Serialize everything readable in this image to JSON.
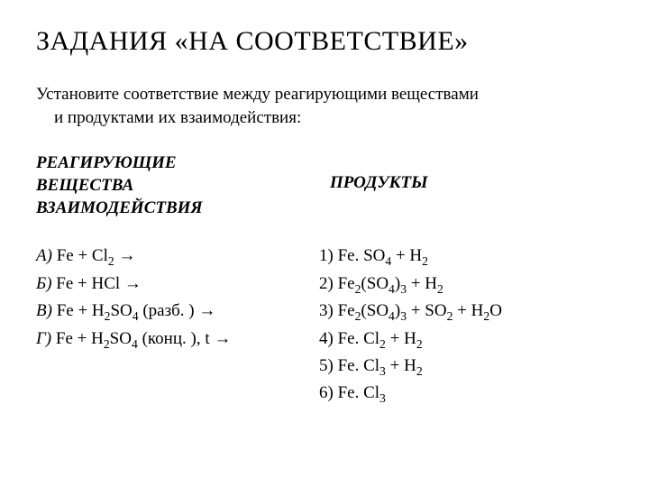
{
  "title": "ЗАДАНИЯ «НА СООТВЕТСТВИЕ»",
  "intro_line1": "Установите соответствие между реагирующими веществами",
  "intro_line2": "и продуктами их взаимодействия:",
  "left_header_l1": "РЕАГИРУЮЩИЕ",
  "left_header_l2": "ВЕЩЕСТВА",
  "left_header_l3": "ВЗАИМОДЕЙСТВИЯ",
  "right_header": "ПРОДУКТЫ",
  "reagents": {
    "a_letter": "А)",
    "a_text_1": " Fe + Cl",
    "a_sub_1": "2",
    "a_text_2": " →",
    "b_letter": "Б) ",
    "b_text_1": " Fe + HCl →",
    "v_letter": "В)",
    "v_text_1": " Fe + H",
    "v_sub_1": "2",
    "v_text_2": "SO",
    "v_sub_2": "4",
    "v_text_3": " (разб. ) →",
    "g_letter": "Г)",
    "g_text_1": " Fe + H",
    "g_sub_1": "2",
    "g_text_2": "SO",
    "g_sub_2": "4",
    "g_text_3": " (конц. ), t →"
  },
  "products": {
    "p1_pre": " 1) Fe. SO",
    "p1_s1": "4",
    "p1_mid": " + H",
    "p1_s2": "2",
    "p2_pre": " 2) Fe",
    "p2_s1": "2",
    "p2_m1": "(SO",
    "p2_s2": "4",
    "p2_m2": ")",
    "p2_s3": "3",
    "p2_m3": " + H",
    "p2_s4": "2",
    "p3_pre": "3) Fe",
    "p3_s1": "2",
    "p3_m1": "(SO",
    "p3_s2": "4",
    "p3_m2": ")",
    "p3_s3": "3",
    "p3_m3": " + SO",
    "p3_s4": "2",
    "p3_m4": " + H",
    "p3_s5": "2",
    "p3_m5": "O",
    "p4_pre": " 4) Fe. Cl",
    "p4_s1": "2",
    "p4_mid": " + H",
    "p4_s2": "2",
    "p5_pre": " 5) Fe. Cl",
    "p5_s1": "3",
    "p5_mid": " + H",
    "p5_s2": "2",
    "p6_pre": " 6) Fe. Cl",
    "p6_s1": "3"
  }
}
